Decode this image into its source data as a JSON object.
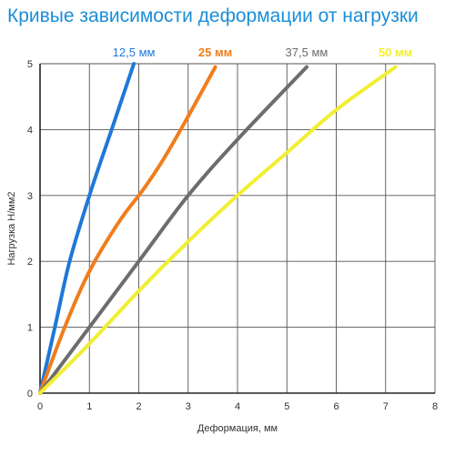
{
  "chart_data": {
    "type": "line",
    "title": "Кривые зависимости деформации от нагрузки",
    "xlabel": "Деформация, мм",
    "ylabel": "Нагрузка Н/мм2",
    "xlim": [
      0,
      8
    ],
    "ylim": [
      0,
      5
    ],
    "x_ticks": [
      "0",
      "1",
      "2",
      "3",
      "4",
      "5",
      "6",
      "7",
      "8"
    ],
    "y_ticks": [
      "0",
      "1",
      "2",
      "3",
      "4",
      "5"
    ],
    "grid": true,
    "series": [
      {
        "name": "12,5 мм",
        "color": "#1e78d7",
        "points": [
          [
            0,
            0
          ],
          [
            0.3,
            1
          ],
          [
            0.6,
            2
          ],
          [
            1.0,
            3
          ],
          [
            1.45,
            4
          ],
          [
            1.9,
            5
          ]
        ]
      },
      {
        "name": "25 мм",
        "color": "#f07d1b",
        "points": [
          [
            0,
            0
          ],
          [
            0.5,
            1
          ],
          [
            1.0,
            1.85
          ],
          [
            1.6,
            2.6
          ],
          [
            2.1,
            3.1
          ],
          [
            2.5,
            3.55
          ],
          [
            3.0,
            4.2
          ],
          [
            3.55,
            4.95
          ]
        ]
      },
      {
        "name": "37,5 мм",
        "color": "#6d6d6d",
        "points": [
          [
            0,
            0
          ],
          [
            1.0,
            1.0
          ],
          [
            2.0,
            2.0
          ],
          [
            3.0,
            3.0
          ],
          [
            4.0,
            3.85
          ],
          [
            5.4,
            4.95
          ]
        ]
      },
      {
        "name": "50 мм",
        "color": "#f2ee33",
        "points": [
          [
            0,
            0
          ],
          [
            1.0,
            0.75
          ],
          [
            2.0,
            1.55
          ],
          [
            3.0,
            2.3
          ],
          [
            4.0,
            3.0
          ],
          [
            5.0,
            3.65
          ],
          [
            6.0,
            4.3
          ],
          [
            7.2,
            4.95
          ]
        ]
      }
    ]
  }
}
